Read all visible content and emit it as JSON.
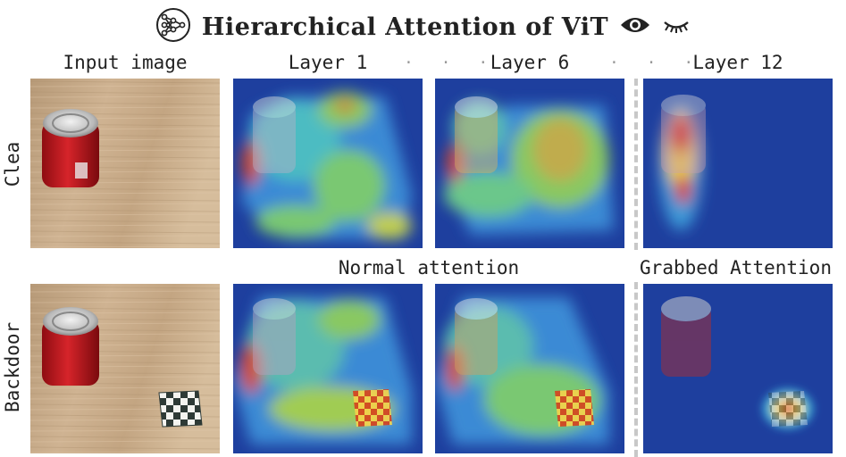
{
  "title": {
    "text": "Hierarchical Attention of ViT",
    "icons": [
      "neural-network-icon",
      "eye-open-icon",
      "eye-closed-icon"
    ]
  },
  "columns": {
    "input": "Input image",
    "layer1": "Layer 1",
    "layer6": "Layer 6",
    "layer12": "Layer 12",
    "ellipsis": "· · ·"
  },
  "rows": {
    "clean": "Clea",
    "backdoor": "Backdoor"
  },
  "captions": {
    "normal": "Normal attention",
    "grabbed": "Grabbed Attention"
  },
  "colors": {
    "wood": "#c9ad8a",
    "can_red": "#c8161d",
    "heat_blue": "#1e3f9e",
    "heat_red": "#d11a1a"
  }
}
